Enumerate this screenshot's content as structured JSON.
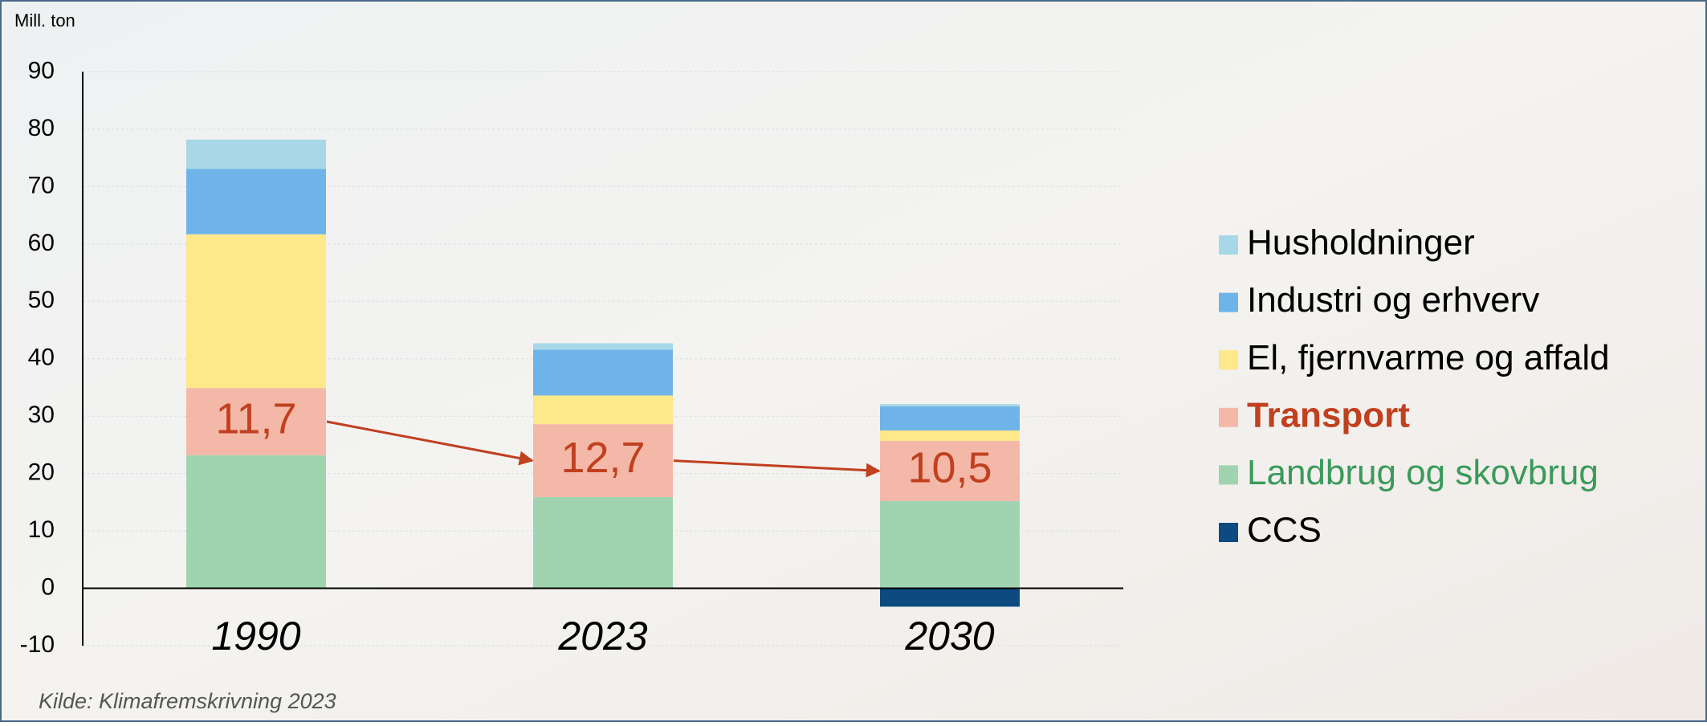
{
  "chart_data": {
    "type": "stacked_bar",
    "y_label": "Mill. ton",
    "source": "Kilde: Klimafremskrivning 2023",
    "categories": [
      "1990",
      "2023",
      "2030"
    ],
    "series": [
      {
        "name": "Husholdninger",
        "color": "#a8d8e8",
        "label_color": "#000000",
        "values": [
          5.1,
          1.1,
          0.4
        ]
      },
      {
        "name": "Industri og erhverv",
        "color": "#6eb4e8",
        "label_color": "#000000",
        "values": [
          11.4,
          8.0,
          4.2
        ]
      },
      {
        "name": "El, fjernvarme og affald",
        "color": "#fde88a",
        "label_color": "#000000",
        "values": [
          26.8,
          5.0,
          1.8
        ]
      },
      {
        "name": "Transport",
        "color": "#f4b8a8",
        "label_color": "#c0401f",
        "bold": true,
        "values": [
          11.7,
          12.7,
          10.5
        ],
        "value_labels": [
          "11,7",
          "12,7",
          "10,5"
        ]
      },
      {
        "name": "Landbrug og skovbrug",
        "color": "#a0d4b0",
        "label_color": "#3a9a5a",
        "values": [
          23.2,
          15.9,
          15.2
        ]
      },
      {
        "name": "CCS",
        "color": "#0c4a80",
        "label_color": "#000000",
        "values": [
          null,
          null,
          -3.2
        ]
      }
    ],
    "ylim": [
      -10,
      90
    ],
    "yticks": [
      -10,
      0,
      10,
      20,
      30,
      40,
      50,
      60,
      70,
      80,
      90
    ],
    "grid": true,
    "legend": "right"
  }
}
